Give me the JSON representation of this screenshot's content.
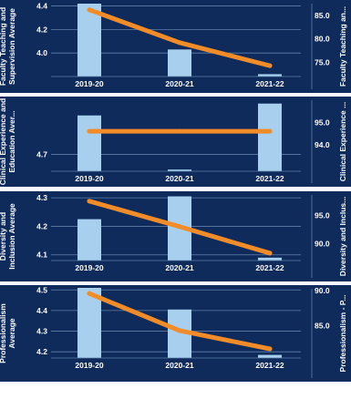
{
  "chart_data": [
    {
      "type": "bar+line",
      "categories": [
        "2019-20",
        "2020-21",
        "2021-22"
      ],
      "bar_series": {
        "name": "Faculty Teaching and Supervision Average",
        "values": [
          4.42,
          4.03,
          3.82
        ]
      },
      "line_series": {
        "name": "Faculty Teaching an...",
        "values": [
          86.2,
          79.2,
          74.3
        ]
      },
      "left_axis": {
        "label": "Faculty Teaching and Supervision Average",
        "ticks": [
          "4.4",
          "4.2",
          "4.0"
        ],
        "tick_values": [
          4.4,
          4.2,
          4.0
        ],
        "range": [
          3.8,
          4.42
        ]
      },
      "right_axis": {
        "label": "Faculty Teaching an...",
        "ticks": [
          "85.0",
          "80.0",
          "75.0"
        ],
        "tick_values": [
          85.0,
          80.0,
          75.0
        ],
        "range": [
          72.0,
          87.5
        ]
      }
    },
    {
      "type": "bar+line",
      "categories": [
        "2019-20",
        "2020-21",
        "2021-22"
      ],
      "bar_series": {
        "name": "Clinical Experience and Education Aver...",
        "values": [
          4.815,
          4.655,
          4.85
        ]
      },
      "line_series": {
        "name": "Clinical Experience ...",
        "values": [
          94.6,
          94.6,
          94.6
        ]
      },
      "left_axis": {
        "label": "Clinical Experience and Education Aver...",
        "ticks": [
          "4.7"
        ],
        "tick_values": [
          4.7
        ],
        "range": [
          4.65,
          4.86
        ]
      },
      "right_axis": {
        "label": "Clinical Experience ...",
        "ticks": [
          "95.0",
          "94.0"
        ],
        "tick_values": [
          95.0,
          94.0
        ],
        "range": [
          92.8,
          96.0
        ]
      }
    },
    {
      "type": "bar+line",
      "categories": [
        "2019-20",
        "2020-21",
        "2021-22"
      ],
      "bar_series": {
        "name": "Diversity and Inclusion Average",
        "values": [
          4.225,
          4.305,
          4.09
        ]
      },
      "line_series": {
        "name": "Diversity and Inclus...",
        "values": [
          97.5,
          93.0,
          88.3
        ]
      },
      "left_axis": {
        "label": "Diversity and Inclusion Average",
        "ticks": [
          "4.3",
          "4.2",
          "4.1"
        ],
        "tick_values": [
          4.3,
          4.2,
          4.1
        ],
        "range": [
          4.08,
          4.31
        ]
      },
      "right_axis": {
        "label": "Diversity and Inclus...",
        "ticks": [
          "95.0",
          "90.0"
        ],
        "tick_values": [
          95.0,
          90.0
        ],
        "range": [
          87.0,
          98.6
        ]
      }
    },
    {
      "type": "bar+line",
      "categories": [
        "2019-20",
        "2020-21",
        "2021-22"
      ],
      "bar_series": {
        "name": "Professionalism Average",
        "values": [
          4.51,
          4.405,
          4.185
        ]
      },
      "line_series": {
        "name": "Professionalism - P...",
        "values": [
          89.6,
          84.3,
          81.7
        ]
      },
      "left_axis": {
        "label": "Professionalism Average",
        "ticks": [
          "4.5",
          "4.4",
          "4.3",
          "4.2"
        ],
        "tick_values": [
          4.5,
          4.4,
          4.3,
          4.2
        ],
        "range": [
          4.17,
          4.51
        ]
      },
      "right_axis": {
        "label": "Professionalism - P...",
        "ticks": [
          "90.0",
          "85.0"
        ],
        "tick_values": [
          90.0,
          85.0
        ],
        "range": [
          80.4,
          90.4
        ]
      }
    }
  ],
  "colors": {
    "background": "#0f2b5c",
    "bar": "#a8d0ee",
    "line": "#f28c28",
    "text": "#ffffff",
    "grid": "#5f7fa8"
  }
}
